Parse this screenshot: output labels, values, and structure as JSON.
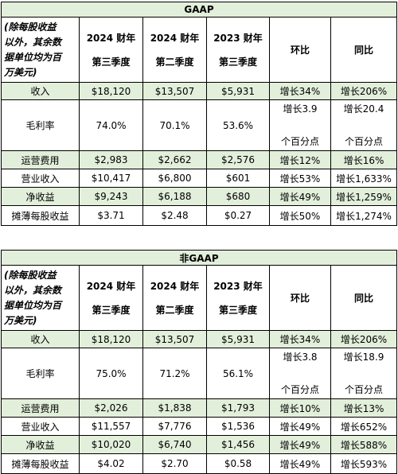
{
  "tables": [
    {
      "title": "GAAP",
      "header": [
        [
          "(除每股收益",
          "以外，其余数",
          "据单位均为百",
          "万美元)"
        ],
        [
          "2024 财年",
          "第三季度"
        ],
        [
          "2024 财年",
          "第二季度"
        ],
        [
          "2023 财年",
          "第三季度"
        ],
        [
          "环比"
        ],
        [
          "同比"
        ]
      ],
      "rows": [
        [
          "收入",
          "$18,120",
          "$13,507",
          "$5,931",
          "增长34%",
          "增长206%"
        ],
        [
          "毛利率",
          "74.0%",
          "70.1%",
          "53.6%",
          [
            "增长3.9",
            "个百分点"
          ],
          [
            "增长20.4",
            "个百分点"
          ]
        ],
        [
          "运营费用",
          "$2,983",
          "$2,662",
          "$2,576",
          "增长12%",
          "增长16%"
        ],
        [
          "营业收入",
          "$10,417",
          "$6,800",
          "$601",
          "增长53%",
          "增长1,633%"
        ],
        [
          "净收益",
          "$9,243",
          "$6,188",
          "$680",
          "增长49%",
          "增长1,259%"
        ],
        [
          "摊薄每股收益",
          "$3.71",
          "$2.48",
          "$0.27",
          "增长50%",
          "增长1,274%"
        ]
      ]
    },
    {
      "title": "非GAAP",
      "header": [
        [
          "(除每股收益",
          "以外，其余数",
          "据单位均为百",
          "万美元)"
        ],
        [
          "2024 财年",
          "第三季度"
        ],
        [
          "2024 财年",
          "第二季度"
        ],
        [
          "2023 财年",
          "第三季度"
        ],
        [
          "环比"
        ],
        [
          "同比"
        ]
      ],
      "rows": [
        [
          "收入",
          "$18,120",
          "$13,507",
          "$5,931",
          "增长34%",
          "增长206%"
        ],
        [
          "毛利率",
          "75.0%",
          "71.2%",
          "56.1%",
          [
            "增长3.8",
            "个百分点"
          ],
          [
            "增长18.9",
            "个百分点"
          ]
        ],
        [
          "运营费用",
          "$2,026",
          "$1,838",
          "$1,793",
          "增长10%",
          "增长13%"
        ],
        [
          "营业收入",
          "$11,557",
          "$7,776",
          "$1,536",
          "增长49%",
          "增长652%"
        ],
        [
          "净收益",
          "$10,020",
          "$6,740",
          "$1,456",
          "增长49%",
          "增长588%"
        ],
        [
          "摊薄每股收益",
          "$4.02",
          "$2.70",
          "$0.58",
          "增长49%",
          "增长593%"
        ]
      ]
    }
  ]
}
